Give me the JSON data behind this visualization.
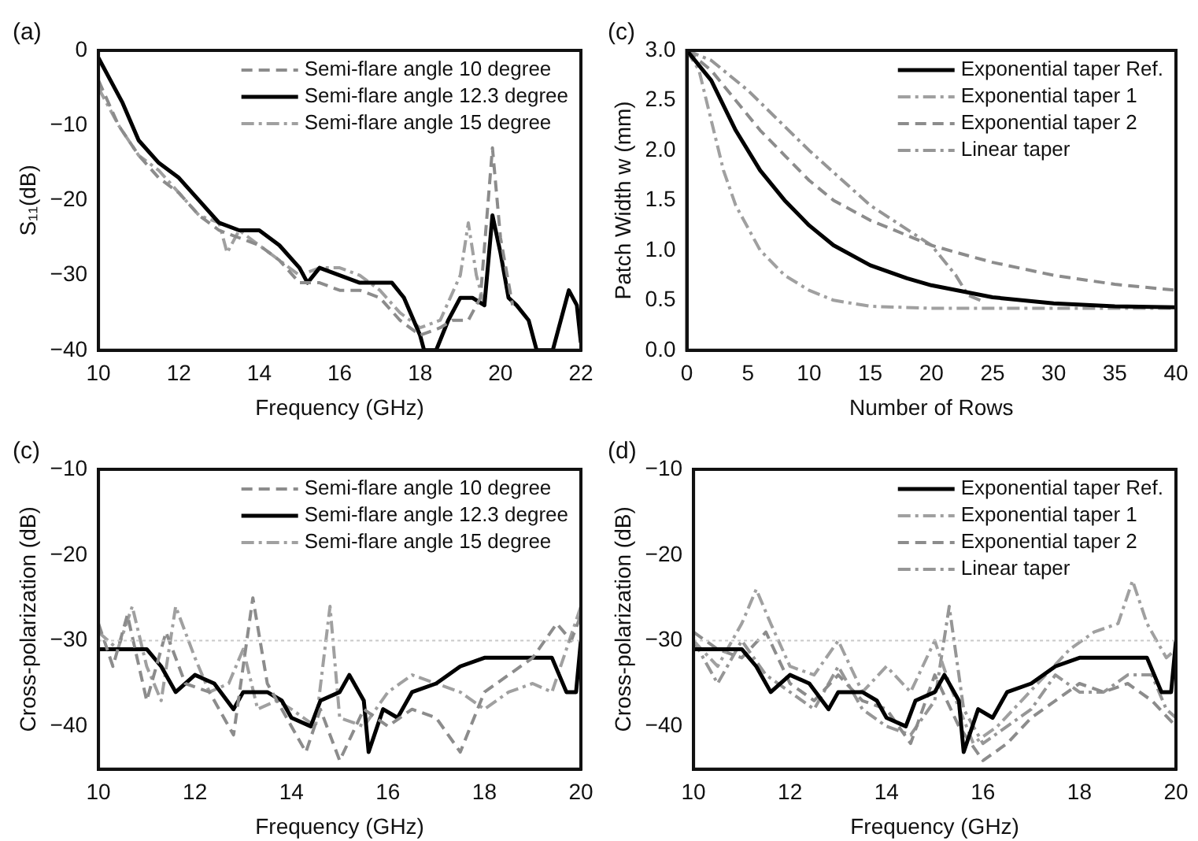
{
  "chart_data": [
    {
      "type": "line",
      "title": "(a)",
      "xlabel": "Frequency (GHz)",
      "ylabel": "S₁₁(dB)",
      "xlim": [
        10,
        22
      ],
      "ylim": [
        -40,
        0
      ],
      "xticks": [
        10,
        12,
        14,
        16,
        18,
        20,
        22
      ],
      "yticks": [
        -40,
        -30,
        -20,
        -10,
        0
      ],
      "grid": false,
      "legend": "top right",
      "marker": "none",
      "series": [
        {
          "name": "Semi-flare angle 10 degree",
          "color": "#8c8c8c",
          "line_style": "dashed",
          "x": [
            10,
            10.5,
            11,
            11.5,
            12,
            12.5,
            13,
            13.5,
            14,
            14.5,
            15,
            15.5,
            16,
            16.5,
            17,
            17.5,
            18,
            18.5,
            18.8,
            19.2,
            19.5,
            19.8,
            20,
            20.3
          ],
          "values": [
            -4,
            -10,
            -14,
            -17,
            -19,
            -22,
            -24,
            -25,
            -26,
            -28,
            -31,
            -31,
            -32,
            -32,
            -33,
            -36,
            -38,
            -37,
            -36,
            -36,
            -33,
            -13,
            -25,
            -34
          ]
        },
        {
          "name": "Semi-flare angle 12.3 degree",
          "color": "#000000",
          "line_style": "solid",
          "x": [
            10,
            10.3,
            10.6,
            11,
            11.5,
            12,
            12.5,
            13,
            13.5,
            14,
            14.5,
            15,
            15.2,
            15.5,
            16,
            16.5,
            17,
            17.3,
            17.6,
            18,
            18.1,
            18.4,
            18.7,
            19,
            19.3,
            19.6,
            19.8,
            20,
            20.2,
            20.4,
            20.7,
            20.9,
            21.3,
            21.7,
            21.9,
            22
          ],
          "values": [
            -1,
            -4,
            -7,
            -12,
            -15,
            -17,
            -20,
            -23,
            -24,
            -24,
            -26,
            -29,
            -31,
            -29,
            -30,
            -31,
            -31,
            -31,
            -33,
            -38,
            -40,
            -40,
            -36,
            -33,
            -33,
            -34,
            -22,
            -27,
            -33,
            -34,
            -36,
            -40,
            -40,
            -32,
            -34,
            -39
          ]
        },
        {
          "name": "Semi-flare angle 15 degree",
          "color": "#a0a0a0",
          "line_style": "dotted",
          "x": [
            10,
            10.5,
            11,
            11.5,
            12,
            12.5,
            13,
            13.2,
            13.5,
            14,
            14.5,
            15,
            15.5,
            16,
            16.5,
            17,
            17.5,
            18,
            18.5,
            19,
            19.2,
            19.4,
            19.6
          ],
          "values": [
            -5,
            -10,
            -14,
            -16,
            -19,
            -22,
            -23,
            -27,
            -24,
            -26,
            -28,
            -30,
            -29,
            -29,
            -30,
            -32,
            -35,
            -37,
            -36,
            -30,
            -23,
            -30,
            -34
          ]
        }
      ]
    },
    {
      "type": "line",
      "title": "(c)",
      "xlabel": "Number of Rows",
      "ylabel": "Patch Width w (mm)",
      "xlim": [
        0,
        40
      ],
      "ylim": [
        0,
        3
      ],
      "xticks": [
        0,
        5,
        10,
        15,
        20,
        25,
        30,
        35,
        40
      ],
      "yticks": [
        {
          "value": 0,
          "label": "0.0"
        },
        {
          "value": 0.5,
          "label": "0.5"
        },
        {
          "value": 1,
          "label": "1.0"
        },
        {
          "value": 1.5,
          "label": "1.5"
        },
        {
          "value": 2,
          "label": "2.0"
        },
        {
          "value": 2.5,
          "label": "2.5"
        },
        {
          "value": 3,
          "label": "3.0"
        }
      ],
      "grid": false,
      "legend": "top right",
      "marker": "none",
      "series": [
        {
          "name": "Exponential taper Ref.",
          "color": "#000000",
          "line_style": "solid",
          "x": [
            0,
            2,
            4,
            6,
            8,
            10,
            12,
            15,
            18,
            20,
            25,
            30,
            35,
            40
          ],
          "values": [
            3,
            2.7,
            2.2,
            1.8,
            1.5,
            1.25,
            1.05,
            0.85,
            0.72,
            0.65,
            0.53,
            0.47,
            0.44,
            0.43
          ]
        },
        {
          "name": "Exponential taper 1",
          "color": "#a0a0a0",
          "line_style": "dotted",
          "x": [
            0,
            1,
            2,
            3,
            4,
            6,
            8,
            10,
            12,
            15,
            20,
            30,
            40
          ],
          "values": [
            3,
            2.8,
            2.3,
            1.8,
            1.45,
            1,
            0.75,
            0.6,
            0.5,
            0.44,
            0.42,
            0.42,
            0.42
          ]
        },
        {
          "name": "Exponential taper 2",
          "color": "#8c8c8c",
          "line_style": "dashed",
          "x": [
            0,
            2,
            4,
            6,
            8,
            10,
            12,
            15,
            18,
            20,
            22,
            25,
            30,
            35,
            40
          ],
          "values": [
            3,
            2.8,
            2.5,
            2.2,
            1.95,
            1.7,
            1.5,
            1.3,
            1.15,
            1.05,
            0.98,
            0.88,
            0.75,
            0.66,
            0.6
          ]
        },
        {
          "name": "Linear taper",
          "color": "#969696",
          "line_style": "dotted",
          "x": [
            0,
            2,
            5,
            10,
            15,
            20,
            22,
            23,
            24
          ],
          "values": [
            3,
            2.9,
            2.6,
            2,
            1.45,
            1.05,
            0.75,
            0.55,
            0.5
          ]
        }
      ]
    },
    {
      "type": "line",
      "title": "(c)",
      "xlabel": "Frequency (GHz)",
      "ylabel": "Cross-polarization (dB)",
      "xlim": [
        10,
        20
      ],
      "ylim": [
        -45,
        -10
      ],
      "xticks": [
        10,
        12,
        14,
        16,
        18,
        20
      ],
      "yticks": [
        -40,
        -30,
        -20,
        -10
      ],
      "grid": false,
      "legend": "top right",
      "marker": "none",
      "ref_lines": [
        {
          "axis": "y",
          "value": -30,
          "color": "#c8c8c8",
          "line_style": "dotted"
        }
      ],
      "series": [
        {
          "name": "Semi-flare angle 10 degree",
          "color": "#8c8c8c",
          "line_style": "dashed",
          "x": [
            10,
            10.3,
            10.6,
            11,
            11.4,
            11.8,
            12.3,
            12.8,
            13.2,
            13.5,
            14,
            14.3,
            14.6,
            15,
            15.5,
            16,
            16.5,
            17,
            17.5,
            18,
            18.5,
            19,
            19.5,
            19.8,
            20
          ],
          "values": [
            -28,
            -33,
            -27,
            -37,
            -29,
            -35,
            -36,
            -41,
            -25,
            -35,
            -40,
            -43,
            -38,
            -44,
            -38,
            -40,
            -38,
            -39,
            -43,
            -36,
            -34,
            -32,
            -28,
            -30,
            -27
          ]
        },
        {
          "name": "Semi-flare angle 12.3 degree",
          "color": "#000000",
          "line_style": "solid",
          "x": [
            10,
            10.5,
            11,
            11.3,
            11.6,
            12,
            12.4,
            12.8,
            13,
            13.5,
            13.8,
            14,
            14.4,
            14.6,
            15,
            15.2,
            15.5,
            15.6,
            15.9,
            16.2,
            16.5,
            17,
            17.5,
            18,
            18.5,
            19,
            19.4,
            19.7,
            19.9,
            20
          ],
          "values": [
            -31,
            -31,
            -31,
            -33,
            -36,
            -34,
            -35,
            -38,
            -36,
            -36,
            -37,
            -39,
            -40,
            -37,
            -36,
            -34,
            -37,
            -43,
            -38,
            -39,
            -36,
            -35,
            -33,
            -32,
            -32,
            -32,
            -32,
            -36,
            -36,
            -30
          ]
        },
        {
          "name": "Semi-flare angle 15 degree",
          "color": "#a0a0a0",
          "line_style": "dotted",
          "x": [
            10,
            10.4,
            10.7,
            11,
            11.3,
            11.6,
            12,
            12.3,
            12.7,
            13,
            13.3,
            13.7,
            14,
            14.5,
            14.8,
            15,
            15.5,
            16,
            16.5,
            17,
            17.5,
            18,
            18.5,
            19,
            19.4,
            19.7,
            20
          ],
          "values": [
            -29,
            -31,
            -26,
            -33,
            -37,
            -26,
            -32,
            -36,
            -35,
            -31,
            -38,
            -37,
            -38,
            -40,
            -26,
            -39,
            -40,
            -36,
            -34,
            -35,
            -36,
            -38,
            -36,
            -35,
            -36,
            -31,
            -26
          ]
        }
      ]
    },
    {
      "type": "line",
      "title": "(d)",
      "xlabel": "Frequency (GHz)",
      "ylabel": "Cross-polarization (dB)",
      "xlim": [
        10,
        20
      ],
      "ylim": [
        -45,
        -10
      ],
      "xticks": [
        10,
        12,
        14,
        16,
        18,
        20
      ],
      "yticks": [
        -40,
        -30,
        -20,
        -10
      ],
      "grid": false,
      "legend": "top right",
      "marker": "none",
      "ref_lines": [
        {
          "axis": "y",
          "value": -30,
          "color": "#c8c8c8",
          "line_style": "dotted"
        }
      ],
      "series": [
        {
          "name": "Exponential taper Ref.",
          "color": "#000000",
          "line_style": "solid",
          "x": [
            10,
            10.5,
            11,
            11.3,
            11.6,
            12,
            12.4,
            12.8,
            13,
            13.5,
            13.8,
            14,
            14.4,
            14.6,
            15,
            15.2,
            15.5,
            15.6,
            15.9,
            16.2,
            16.5,
            17,
            17.5,
            18,
            18.5,
            19,
            19.4,
            19.7,
            19.9,
            20
          ],
          "values": [
            -31,
            -31,
            -31,
            -33,
            -36,
            -34,
            -35,
            -38,
            -36,
            -36,
            -37,
            -39,
            -40,
            -37,
            -36,
            -34,
            -37,
            -43,
            -38,
            -39,
            -36,
            -35,
            -33,
            -32,
            -32,
            -32,
            -32,
            -36,
            -36,
            -30
          ]
        },
        {
          "name": "Exponential taper 1",
          "color": "#a0a0a0",
          "line_style": "dotted",
          "x": [
            10,
            10.5,
            11,
            11.3,
            11.6,
            12,
            12.5,
            13,
            13.5,
            14,
            14.5,
            15,
            15.3,
            15.8,
            16.3,
            16.8,
            17.3,
            17.8,
            18.3,
            18.8,
            19.1,
            19.4,
            19.8,
            20
          ],
          "values": [
            -30,
            -33,
            -28,
            -24,
            -28,
            -33,
            -34,
            -30,
            -36,
            -33,
            -36,
            -30,
            -35,
            -42,
            -40,
            -37,
            -34,
            -31,
            -29,
            -28,
            -23,
            -28,
            -32,
            -31
          ]
        },
        {
          "name": "Exponential taper 2",
          "color": "#8c8c8c",
          "line_style": "dashed",
          "x": [
            10,
            10.5,
            11,
            11.5,
            12,
            12.5,
            13,
            13.5,
            14,
            14.5,
            15,
            15.5,
            16,
            16.5,
            17,
            17.5,
            18,
            18.5,
            19,
            19.5,
            20
          ],
          "values": [
            -29,
            -31,
            -32,
            -29,
            -35,
            -37,
            -34,
            -37,
            -38,
            -42,
            -34,
            -40,
            -44,
            -42,
            -39,
            -37,
            -35,
            -36,
            -35,
            -37,
            -40
          ]
        },
        {
          "name": "Linear taper",
          "color": "#969696",
          "line_style": "dotted",
          "x": [
            10,
            10.5,
            11,
            11.5,
            12,
            12.5,
            13,
            13.5,
            14,
            14.5,
            15,
            15.3,
            15.6,
            16,
            16.5,
            17,
            17.5,
            18,
            18.5,
            19,
            19.5,
            19.8,
            20
          ],
          "values": [
            -30,
            -35,
            -30,
            -34,
            -36,
            -38,
            -33,
            -38,
            -40,
            -41,
            -37,
            -26,
            -38,
            -42,
            -40,
            -38,
            -34,
            -36,
            -36,
            -34,
            -34,
            -38,
            -39
          ]
        }
      ]
    }
  ]
}
